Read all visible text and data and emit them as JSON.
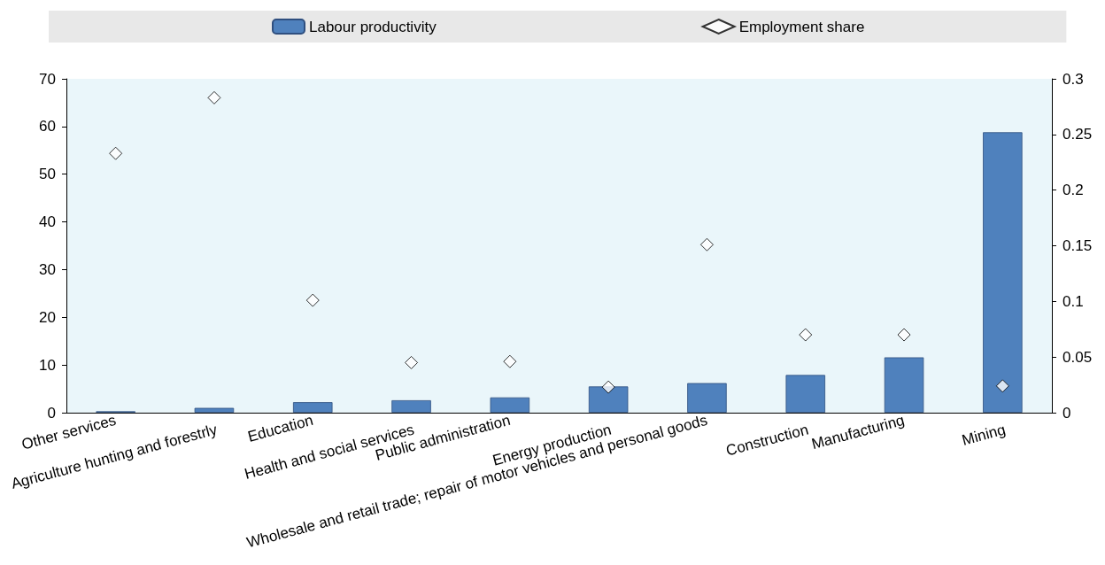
{
  "chart_data": {
    "type": "bar",
    "categories": [
      "Other services",
      "Agriculture hunting and forestrly",
      "Education",
      "Health and social services",
      "Public administration",
      "Energy production",
      "Wholesale and retail trade; repair of motor vehicles and personal goods",
      "Construction",
      "Manufacturing",
      "Mining"
    ],
    "series": [
      {
        "name": "Labour productivity",
        "color": "#4f81bd",
        "values": [
          0.3,
          1.0,
          2.2,
          2.6,
          3.2,
          5.5,
          6.2,
          7.9,
          11.6,
          58.8
        ]
      },
      {
        "name": "Employment share",
        "type": "scatter",
        "axis": "y2",
        "color": "#000000",
        "values": [
          0.233,
          0.283,
          0.101,
          0.045,
          0.046,
          0.023,
          0.151,
          0.07,
          0.07,
          0.024
        ]
      }
    ],
    "ylim": [
      0,
      70
    ],
    "yticks": [
      0,
      10,
      20,
      30,
      40,
      50,
      60,
      70
    ],
    "y2lim": [
      0,
      0.3
    ],
    "y2ticks": [
      0,
      0.05,
      0.1,
      0.15,
      0.2,
      0.25,
      0.3
    ],
    "marker": "diamond",
    "grid": false,
    "legend": "top"
  }
}
